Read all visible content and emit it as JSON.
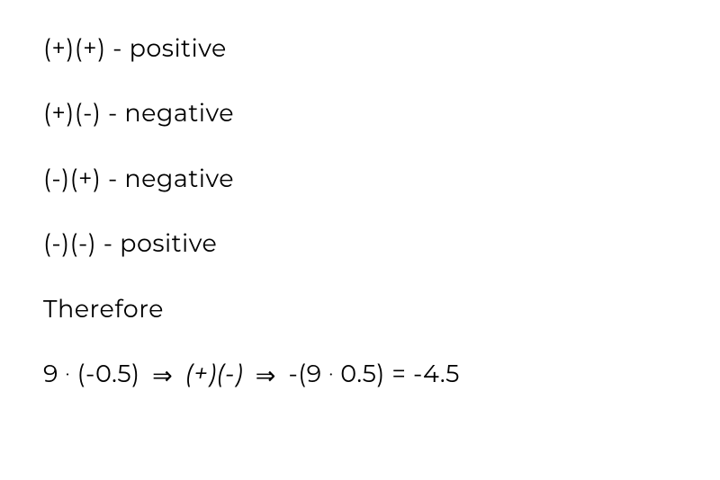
{
  "text_color": "#000000",
  "background_color": "#ffffff",
  "font_size": 27,
  "line_spacing": 40,
  "lines": {
    "rule1": {
      "signs": "(+)(+)",
      "sep": " - ",
      "result": "positive"
    },
    "rule2": {
      "signs": "(+)(-)",
      "sep": " - ",
      "result": "negative"
    },
    "rule3": {
      "signs": "(-)(+)",
      "sep": " - ",
      "result": "negative"
    },
    "rule4": {
      "signs": "(-)(-)",
      "sep": " - ",
      "result": "positive"
    },
    "therefore": "Therefore",
    "equation": {
      "part1": "9 ",
      "dot1": "·",
      "part2": " (-0.5)  ",
      "arrow1": "⇒",
      "signs_italic": " (+)(-) ",
      "arrow2": "⇒",
      "part3": "  -(9 ",
      "dot2": "·",
      "part4": " 0.5) = -4.5"
    }
  }
}
